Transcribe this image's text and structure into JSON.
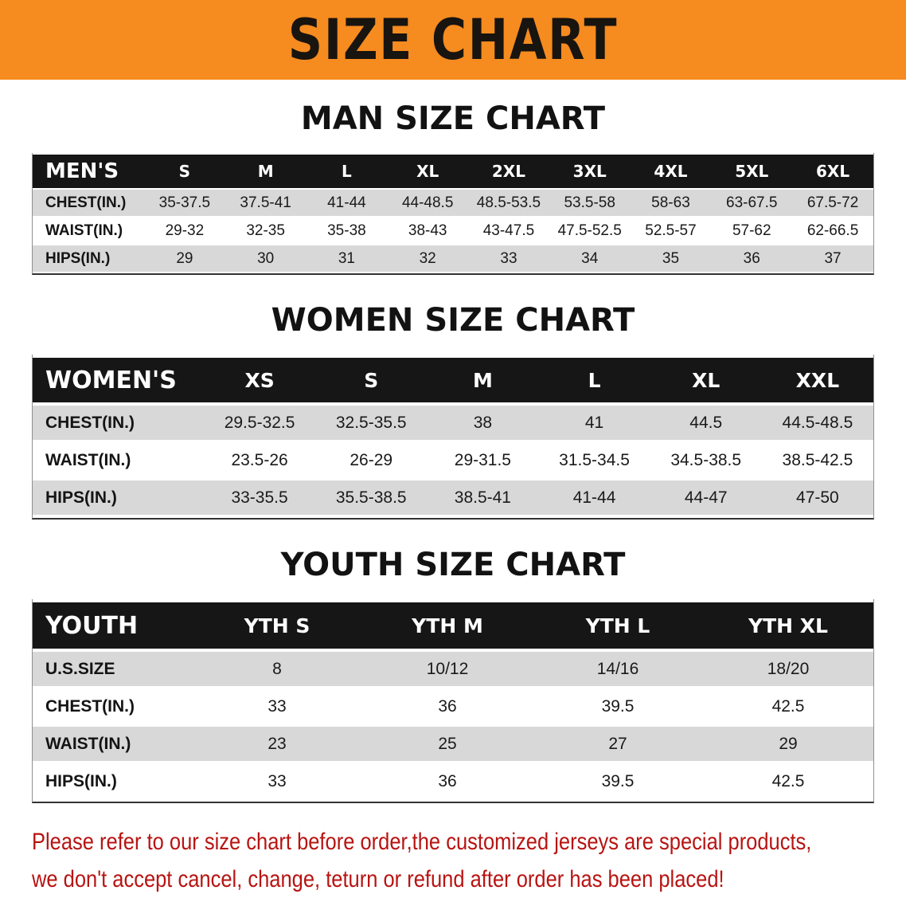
{
  "banner": {
    "title": "SIZE CHART",
    "bg_color": "#F68B1F",
    "text_color": "#181410"
  },
  "colors": {
    "table_header_bg": "#161616",
    "table_header_text": "#FFFFFF",
    "row_gray": "#D8D8D8",
    "row_white": "#FFFFFF",
    "disclaimer_red": "#B71412"
  },
  "sections": [
    {
      "heading": "MAN SIZE CHART",
      "table": {
        "name": "mens",
        "header": [
          "MEN'S",
          "S",
          "M",
          "L",
          "XL",
          "2XL",
          "3XL",
          "4XL",
          "5XL",
          "6XL"
        ],
        "rows": [
          [
            "CHEST(IN.)",
            "35-37.5",
            "37.5-41",
            "41-44",
            "44-48.5",
            "48.5-53.5",
            "53.5-58",
            "58-63",
            "63-67.5",
            "67.5-72"
          ],
          [
            "WAIST(IN.)",
            "29-32",
            "32-35",
            "35-38",
            "38-43",
            "43-47.5",
            "47.5-52.5",
            "52.5-57",
            "57-62",
            "62-66.5"
          ],
          [
            "HIPS(IN.)",
            "29",
            "30",
            "31",
            "32",
            "33",
            "34",
            "35",
            "36",
            "37"
          ]
        ]
      }
    },
    {
      "heading": "WOMEN SIZE CHART",
      "table": {
        "name": "womens",
        "header": [
          "WOMEN'S",
          "XS",
          "S",
          "M",
          "L",
          "XL",
          "XXL"
        ],
        "rows": [
          [
            "CHEST(IN.)",
            "29.5-32.5",
            "32.5-35.5",
            "38",
            "41",
            "44.5",
            "44.5-48.5"
          ],
          [
            "WAIST(IN.)",
            "23.5-26",
            "26-29",
            "29-31.5",
            "31.5-34.5",
            "34.5-38.5",
            "38.5-42.5"
          ],
          [
            "HIPS(IN.)",
            "33-35.5",
            "35.5-38.5",
            "38.5-41",
            "41-44",
            "44-47",
            "47-50"
          ]
        ]
      }
    },
    {
      "heading": "YOUTH SIZE CHART",
      "table": {
        "name": "youth",
        "header": [
          "YOUTH",
          "YTH S",
          "YTH M",
          "YTH L",
          "YTH XL"
        ],
        "rows": [
          [
            "U.S.SIZE",
            "8",
            "10/12",
            "14/16",
            "18/20"
          ],
          [
            "CHEST(IN.)",
            "33",
            "36",
            "39.5",
            "42.5"
          ],
          [
            "WAIST(IN.)",
            "23",
            "25",
            "27",
            "29"
          ],
          [
            "HIPS(IN.)",
            "33",
            "36",
            "39.5",
            "42.5"
          ]
        ]
      }
    }
  ],
  "footer": {
    "line1": "Please refer to our size chart before order,the customized jerseys are special products,",
    "line2": "we don't accept cancel, change, teturn or refund after order has been placed!"
  }
}
